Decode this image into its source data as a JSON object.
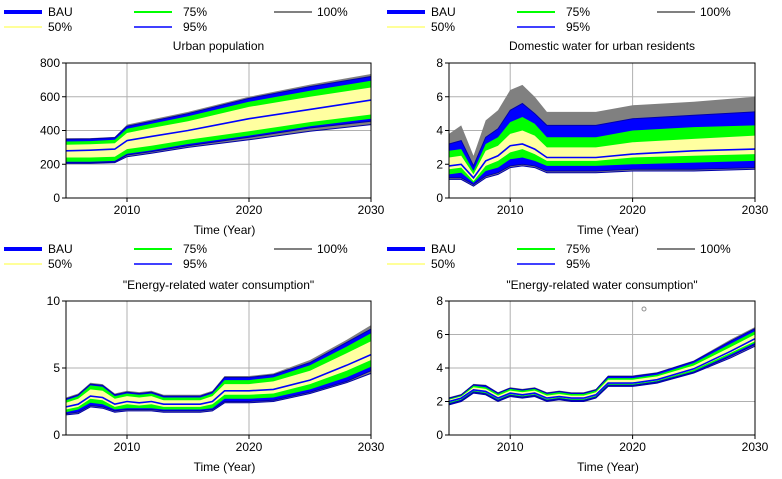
{
  "legend": {
    "entries": [
      {
        "label": "BAU",
        "color": "#0000ff"
      },
      {
        "label": "50%",
        "color": "#ffff99"
      },
      {
        "label": "75%",
        "color": "#00ff00"
      },
      {
        "label": "95%",
        "color": "#0000ff"
      },
      {
        "label": "100%",
        "color": "#808080"
      }
    ]
  },
  "colors": {
    "band_outer": "#808080",
    "band_95": "#0000ff",
    "band_75": "#00ff00",
    "band_50": "#ffffa0",
    "median_line": "#0000ff",
    "edge_line": "#0000aa"
  },
  "chart_data": [
    {
      "type": "area",
      "title": "Urban population",
      "xlabel": "Time (Year)",
      "ylabel": "",
      "xlim": [
        2005,
        2030
      ],
      "ylim": [
        0,
        800
      ],
      "xticks": [
        2010,
        2020,
        2030
      ],
      "yticks": [
        0,
        200,
        400,
        600,
        800
      ],
      "x": [
        2005,
        2007,
        2009,
        2010,
        2012,
        2015,
        2020,
        2025,
        2030
      ],
      "bands": {
        "p0": [
          205,
          205,
          210,
          245,
          265,
          300,
          345,
          395,
          435
        ],
        "p5": [
          210,
          210,
          215,
          255,
          275,
          310,
          360,
          415,
          455
        ],
        "p12": [
          215,
          215,
          220,
          262,
          282,
          320,
          370,
          425,
          470
        ],
        "p25": [
          240,
          240,
          245,
          290,
          310,
          345,
          395,
          450,
          495
        ],
        "p50": [
          280,
          283,
          290,
          340,
          365,
          400,
          470,
          525,
          580
        ],
        "p75": [
          315,
          318,
          325,
          385,
          415,
          455,
          540,
          600,
          655
        ],
        "p88": [
          335,
          337,
          345,
          410,
          440,
          485,
          570,
          635,
          695
        ],
        "p95": [
          348,
          350,
          358,
          425,
          455,
          500,
          590,
          660,
          720
        ],
        "p100": [
          355,
          355,
          362,
          435,
          465,
          510,
          600,
          672,
          735
        ]
      }
    },
    {
      "type": "area",
      "title": "Domestic water for urban residents",
      "xlabel": "Time (Year)",
      "ylabel": "",
      "xlim": [
        2005,
        2030
      ],
      "ylim": [
        0,
        8
      ],
      "xticks": [
        2010,
        2020,
        2030
      ],
      "yticks": [
        0,
        2,
        4,
        6,
        8
      ],
      "x": [
        2005,
        2006,
        2007,
        2008,
        2009,
        2010,
        2011,
        2012,
        2013,
        2015,
        2017,
        2020,
        2025,
        2030
      ],
      "bands": {
        "p0": [
          1.1,
          1.1,
          0.7,
          1.2,
          1.4,
          1.8,
          1.9,
          1.8,
          1.5,
          1.5,
          1.5,
          1.6,
          1.6,
          1.7
        ],
        "p5": [
          1.2,
          1.2,
          0.8,
          1.3,
          1.5,
          1.9,
          2.0,
          1.9,
          1.6,
          1.6,
          1.6,
          1.7,
          1.7,
          1.8
        ],
        "p12": [
          1.4,
          1.5,
          0.9,
          1.6,
          1.8,
          2.3,
          2.4,
          2.2,
          1.9,
          1.9,
          1.9,
          2.0,
          2.1,
          2.2
        ],
        "p25": [
          1.7,
          1.8,
          1.0,
          1.9,
          2.2,
          2.7,
          2.9,
          2.6,
          2.2,
          2.2,
          2.2,
          2.4,
          2.5,
          2.6
        ],
        "p50": [
          1.9,
          2.0,
          1.2,
          2.2,
          2.5,
          3.1,
          3.2,
          2.9,
          2.4,
          2.4,
          2.4,
          2.6,
          2.8,
          2.9
        ],
        "p75": [
          2.4,
          2.5,
          1.4,
          2.8,
          3.1,
          3.8,
          4.0,
          3.7,
          3.0,
          3.0,
          3.0,
          3.3,
          3.5,
          3.7
        ],
        "p88": [
          2.8,
          2.9,
          1.6,
          3.2,
          3.6,
          4.5,
          4.8,
          4.4,
          3.6,
          3.6,
          3.6,
          4.0,
          4.2,
          4.3
        ],
        "p95": [
          3.2,
          3.4,
          1.9,
          3.6,
          4.1,
          5.2,
          5.6,
          5.0,
          4.3,
          4.3,
          4.3,
          4.7,
          4.9,
          5.1
        ],
        "p100": [
          3.8,
          4.3,
          2.5,
          4.6,
          5.2,
          6.4,
          6.7,
          6.0,
          5.1,
          5.1,
          5.1,
          5.5,
          5.7,
          6.0
        ]
      }
    },
    {
      "type": "area",
      "title": "\"Energy-related water consumption\"",
      "xlabel": "Time (Year)",
      "ylabel": "",
      "xlim": [
        2005,
        2030
      ],
      "ylim": [
        0,
        10
      ],
      "xticks": [
        2010,
        2020,
        2030
      ],
      "yticks": [
        0,
        5,
        10
      ],
      "x": [
        2005,
        2006,
        2007,
        2008,
        2009,
        2010,
        2011,
        2012,
        2013,
        2014,
        2015,
        2016,
        2017,
        2018,
        2020,
        2022,
        2025,
        2028,
        2030
      ],
      "bands": {
        "p0": [
          1.5,
          1.6,
          2.1,
          2.0,
          1.7,
          1.8,
          1.8,
          1.8,
          1.7,
          1.7,
          1.7,
          1.7,
          1.8,
          2.4,
          2.4,
          2.5,
          3.1,
          3.9,
          4.6
        ],
        "p5": [
          1.6,
          1.7,
          2.2,
          2.1,
          1.8,
          1.9,
          1.9,
          1.9,
          1.8,
          1.8,
          1.8,
          1.8,
          1.9,
          2.5,
          2.5,
          2.6,
          3.2,
          4.0,
          4.8
        ],
        "p12": [
          1.7,
          1.9,
          2.4,
          2.3,
          1.9,
          2.0,
          2.0,
          2.0,
          1.9,
          1.9,
          1.9,
          1.9,
          2.0,
          2.7,
          2.7,
          2.8,
          3.4,
          4.3,
          5.1
        ],
        "p25": [
          1.9,
          2.1,
          2.7,
          2.6,
          2.1,
          2.3,
          2.2,
          2.3,
          2.1,
          2.1,
          2.1,
          2.1,
          2.3,
          3.0,
          3.0,
          3.1,
          3.8,
          4.8,
          5.6
        ],
        "p50": [
          2.1,
          2.3,
          2.9,
          2.8,
          2.3,
          2.5,
          2.4,
          2.5,
          2.3,
          2.3,
          2.3,
          2.3,
          2.5,
          3.3,
          3.3,
          3.4,
          4.1,
          5.2,
          6.0
        ],
        "p75": [
          2.4,
          2.7,
          3.4,
          3.3,
          2.7,
          2.9,
          2.8,
          2.9,
          2.6,
          2.6,
          2.6,
          2.6,
          2.9,
          3.8,
          3.8,
          4.0,
          4.8,
          6.1,
          7.0
        ],
        "p88": [
          2.6,
          2.9,
          3.7,
          3.6,
          2.9,
          3.1,
          3.0,
          3.1,
          2.8,
          2.8,
          2.8,
          2.8,
          3.1,
          4.1,
          4.1,
          4.3,
          5.2,
          6.6,
          7.6
        ],
        "p95": [
          2.7,
          3.0,
          3.8,
          3.7,
          3.0,
          3.2,
          3.1,
          3.2,
          2.9,
          2.9,
          2.9,
          2.9,
          3.2,
          4.3,
          4.3,
          4.5,
          5.4,
          6.9,
          7.9
        ],
        "p100": [
          2.8,
          3.1,
          3.9,
          3.8,
          3.1,
          3.3,
          3.2,
          3.3,
          3.0,
          3.0,
          3.0,
          3.0,
          3.3,
          4.4,
          4.4,
          4.6,
          5.6,
          7.1,
          8.2
        ]
      }
    },
    {
      "type": "area",
      "title": "\"Energy-related water consumption\"",
      "xlabel": "Time (Year)",
      "ylabel": "",
      "xlim": [
        2005,
        2030
      ],
      "ylim": [
        0,
        8
      ],
      "xticks": [
        2010,
        2020,
        2030
      ],
      "yticks": [
        0,
        2,
        4,
        6,
        8
      ],
      "x": [
        2005,
        2006,
        2007,
        2008,
        2009,
        2010,
        2011,
        2012,
        2013,
        2014,
        2015,
        2016,
        2017,
        2018,
        2020,
        2022,
        2025,
        2028,
        2030
      ],
      "bands": {
        "p0": [
          1.8,
          2.0,
          2.5,
          2.4,
          2.0,
          2.3,
          2.2,
          2.3,
          2.0,
          2.1,
          2.0,
          2.0,
          2.2,
          2.9,
          2.9,
          3.1,
          3.7,
          4.6,
          5.3
        ],
        "p5": [
          1.85,
          2.05,
          2.55,
          2.45,
          2.05,
          2.35,
          2.25,
          2.35,
          2.05,
          2.15,
          2.05,
          2.05,
          2.25,
          2.95,
          2.95,
          3.15,
          3.75,
          4.7,
          5.4
        ],
        "p12": [
          1.9,
          2.1,
          2.6,
          2.5,
          2.1,
          2.4,
          2.3,
          2.4,
          2.1,
          2.2,
          2.1,
          2.1,
          2.3,
          3.0,
          3.0,
          3.2,
          3.8,
          4.8,
          5.5
        ],
        "p25": [
          1.95,
          2.15,
          2.65,
          2.55,
          2.15,
          2.45,
          2.35,
          2.45,
          2.15,
          2.25,
          2.15,
          2.15,
          2.35,
          3.05,
          3.05,
          3.25,
          3.9,
          4.9,
          5.6
        ],
        "p50": [
          2.0,
          2.2,
          2.7,
          2.6,
          2.2,
          2.5,
          2.4,
          2.5,
          2.2,
          2.3,
          2.2,
          2.2,
          2.4,
          3.1,
          3.1,
          3.3,
          3.95,
          5.0,
          5.75
        ],
        "p75": [
          2.1,
          2.3,
          2.85,
          2.75,
          2.35,
          2.65,
          2.55,
          2.65,
          2.35,
          2.45,
          2.35,
          2.35,
          2.55,
          3.3,
          3.3,
          3.5,
          4.15,
          5.25,
          6.0
        ],
        "p88": [
          2.15,
          2.35,
          2.95,
          2.85,
          2.45,
          2.75,
          2.65,
          2.75,
          2.45,
          2.55,
          2.45,
          2.45,
          2.65,
          3.4,
          3.4,
          3.6,
          4.3,
          5.45,
          6.2
        ],
        "p95": [
          2.2,
          2.4,
          3.0,
          2.95,
          2.5,
          2.8,
          2.7,
          2.8,
          2.5,
          2.6,
          2.5,
          2.5,
          2.7,
          3.5,
          3.5,
          3.7,
          4.4,
          5.6,
          6.35
        ],
        "p100": [
          2.25,
          2.45,
          3.05,
          3.0,
          2.55,
          2.85,
          2.75,
          2.85,
          2.55,
          2.65,
          2.55,
          2.55,
          2.75,
          3.55,
          3.55,
          3.75,
          4.45,
          5.7,
          6.45
        ]
      }
    }
  ]
}
